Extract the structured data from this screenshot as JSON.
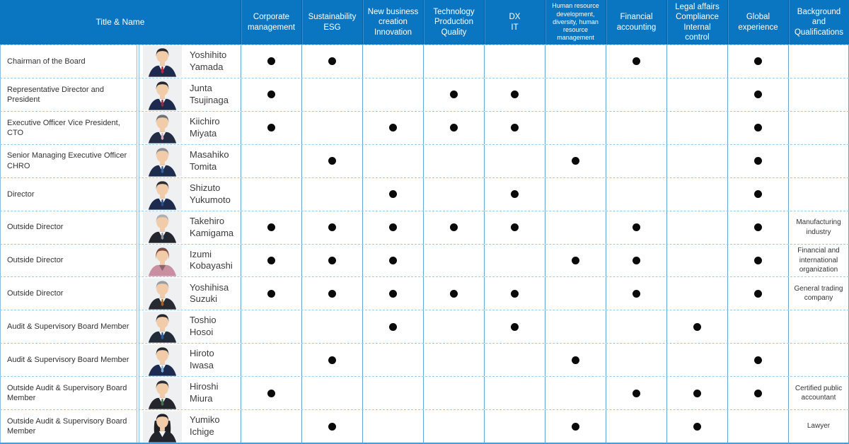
{
  "colors": {
    "header_blue": "#0a76c2",
    "column_border": "#5fa4d8",
    "row_dash_border": "#9ccaec",
    "dot": "#0a0a0a",
    "photo_background": "#eef0f1",
    "skin": "#f2cba8"
  },
  "table": {
    "header": {
      "title_name": "Title & Name",
      "skills": [
        {
          "label": "Corporate\nmanagement",
          "small": false
        },
        {
          "label": "Sustainability\nESG",
          "small": false
        },
        {
          "label": "New business\ncreation\nInnovation",
          "small": false
        },
        {
          "label": "Technology\nProduction\nQuality",
          "small": false
        },
        {
          "label": "DX\nIT",
          "small": false
        },
        {
          "label": "Human resource\ndevelopment,\ndiversity, human\nresource\nmanagement",
          "small": true
        },
        {
          "label": "Financial\naccounting",
          "small": false
        },
        {
          "label": "Legal affairs\nCompliance\nInternal\ncontrol",
          "small": false
        },
        {
          "label": "Global\nexperience",
          "small": false
        },
        {
          "label": "Background\nand\nQualifications",
          "small": false
        }
      ]
    },
    "marker_glyph": "●",
    "rows": [
      {
        "title": "Chairman of the Board",
        "name": "Yoshihito\nYamada",
        "skills": [
          1,
          1,
          0,
          0,
          0,
          0,
          1,
          0,
          1
        ],
        "background": "",
        "avatar": {
          "hair": "#23272e",
          "suit": "#1c2a4d",
          "tie": "#b5273b",
          "style": "short",
          "shirt": "#ffffff"
        }
      },
      {
        "title": "Representative Director and President",
        "name": "Junta\nTsujinaga",
        "skills": [
          1,
          0,
          0,
          1,
          1,
          0,
          0,
          0,
          1
        ],
        "background": "",
        "avatar": {
          "hair": "#23272e",
          "suit": "#1c2a4d",
          "tie": "#93303f",
          "style": "short",
          "shirt": "#ffffff"
        }
      },
      {
        "title": "Executive Officer Vice President, CTO",
        "name": "Kiichiro\nMiyata",
        "skills": [
          1,
          0,
          1,
          1,
          1,
          0,
          0,
          0,
          1
        ],
        "background": "",
        "avatar": {
          "hair": "#6d7276",
          "suit": "#222c44",
          "tie": "#d9aab8",
          "style": "short",
          "shirt": "#ffffff"
        }
      },
      {
        "title": "Senior Managing Executive Officer CHRO",
        "name": "Masahiko\nTomita",
        "skills": [
          0,
          1,
          0,
          0,
          0,
          1,
          0,
          0,
          1
        ],
        "background": "",
        "avatar": {
          "hair": "#878d91",
          "suit": "#1e2c4e",
          "tie": "#36639c",
          "style": "short",
          "shirt": "#ffffff"
        }
      },
      {
        "title": "Director",
        "name": "Shizuto\nYukumoto",
        "skills": [
          0,
          0,
          1,
          0,
          1,
          0,
          0,
          0,
          1
        ],
        "background": "",
        "avatar": {
          "hair": "#2a2e33",
          "suit": "#1c2a4d",
          "tie": "#2c4f86",
          "style": "short",
          "shirt": "#ffffff"
        }
      },
      {
        "title": "Outside Director",
        "name": "Takehiro\nKamigama",
        "skills": [
          1,
          1,
          1,
          1,
          1,
          0,
          1,
          0,
          1
        ],
        "background": "Manufacturing industry",
        "avatar": {
          "hair": "#aab0b3",
          "suit": "#23262e",
          "tie": "#8d97a1",
          "style": "short",
          "shirt": "#ffffff"
        }
      },
      {
        "title": "Outside Director",
        "name": "Izumi\nKobayashi",
        "skills": [
          1,
          1,
          1,
          0,
          0,
          1,
          1,
          0,
          1
        ],
        "background": "Financial and international organization",
        "avatar": {
          "hair": "#7e4a3c",
          "suit": "#c98fa0",
          "tie": "",
          "style": "bob",
          "shirt": "#8c6470"
        }
      },
      {
        "title": "Outside Director",
        "name": "Yoshihisa\nSuzuki",
        "skills": [
          1,
          1,
          1,
          1,
          1,
          0,
          1,
          0,
          1
        ],
        "background": "General trading company",
        "avatar": {
          "hair": "#989da0",
          "suit": "#262b33",
          "tie": "#a4652f",
          "style": "short",
          "shirt": "#ffffff"
        }
      },
      {
        "title": "Audit & Supervisory Board Member",
        "name": "Toshio\nHosoi",
        "skills": [
          0,
          0,
          1,
          0,
          1,
          0,
          0,
          1,
          0
        ],
        "background": "",
        "avatar": {
          "hair": "#23272e",
          "suit": "#222b38",
          "tie": "#2d5d9a",
          "style": "short",
          "shirt": "#ffffff"
        }
      },
      {
        "title": "Audit & Supervisory Board Member",
        "name": "Hiroto\nIwasa",
        "skills": [
          0,
          1,
          0,
          0,
          0,
          1,
          0,
          0,
          1
        ],
        "background": "",
        "avatar": {
          "hair": "#23272e",
          "suit": "#1d2b50",
          "tie": "#7fb3d9",
          "style": "short",
          "shirt": "#ffffff"
        }
      },
      {
        "title": "Outside Audit & Supervisory Board Member",
        "name": "Hiroshi\nMiura",
        "skills": [
          1,
          0,
          0,
          0,
          0,
          0,
          1,
          1,
          1
        ],
        "background": "Certified public accountant",
        "avatar": {
          "hair": "#2b2f35",
          "suit": "#23262c",
          "tie": "#49714f",
          "style": "short",
          "shirt": "#ffffff"
        }
      },
      {
        "title": "Outside Audit & Supervisory Board Member",
        "name": "Yumiko\nIchige",
        "skills": [
          0,
          1,
          0,
          0,
          0,
          1,
          0,
          1,
          0
        ],
        "background": "Lawyer",
        "avatar": {
          "hair": "#1e2026",
          "suit": "#22252b",
          "tie": "",
          "style": "long",
          "shirt": "#f4f4f4"
        }
      }
    ]
  }
}
